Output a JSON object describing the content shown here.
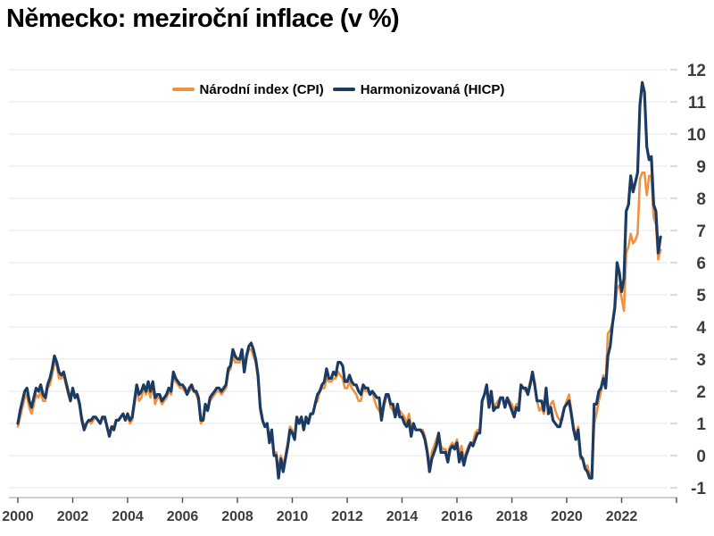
{
  "page": {
    "title": "Německo: meziroční inflace (v %)"
  },
  "legend": {
    "cpi": "Národní index (CPI)",
    "hicp": "Harmonizovaná (HICP)"
  },
  "chart_data": {
    "type": "line",
    "title": "Německo: meziroční inflace (v %)",
    "xlabel": "",
    "ylabel": "",
    "x_start_year": 2000,
    "x_interval": "monthly",
    "x_end": "2023-06",
    "x_axis_end_year": 2024,
    "xticks": [
      2000,
      2002,
      2004,
      2006,
      2008,
      2010,
      2012,
      2014,
      2016,
      2018,
      2020,
      2022
    ],
    "ylim": [
      -1,
      12
    ],
    "ytick_step": 1,
    "grid": "horizontal",
    "legend_position": "top-center",
    "colors": {
      "grid": "#e4e4e4",
      "axis_line": "#bfbfbf",
      "ytick": "#c9c9c9",
      "xtick": "#4d4d4d",
      "labels": "#3d3d3d",
      "title": "#000000"
    },
    "series": [
      {
        "name": "Národní index (CPI)",
        "color": "#f0913e",
        "values": [
          0.9,
          1.2,
          1.5,
          1.8,
          1.9,
          1.5,
          1.3,
          1.6,
          1.9,
          1.8,
          2.0,
          1.7,
          1.7,
          2.1,
          2.2,
          2.5,
          2.9,
          2.8,
          2.4,
          2.4,
          2.5,
          2.2,
          1.9,
          1.7,
          2.0,
          1.8,
          1.9,
          1.5,
          1.2,
          0.9,
          1.0,
          1.1,
          1.0,
          1.1,
          1.2,
          1.1,
          1.0,
          1.2,
          1.1,
          0.9,
          0.7,
          0.9,
          0.9,
          1.1,
          1.1,
          1.2,
          1.3,
          1.1,
          1.2,
          1.0,
          1.1,
          1.6,
          2.1,
          1.7,
          1.8,
          2.1,
          1.9,
          2.1,
          1.8,
          2.2,
          1.6,
          1.8,
          1.8,
          1.6,
          1.7,
          1.8,
          2.0,
          1.9,
          2.5,
          2.3,
          2.2,
          2.1,
          2.1,
          2.0,
          1.9,
          2.0,
          2.1,
          2.0,
          1.9,
          1.7,
          1.0,
          1.1,
          1.5,
          1.4,
          1.7,
          1.8,
          1.9,
          2.0,
          2.0,
          1.9,
          2.0,
          2.1,
          2.6,
          2.7,
          3.1,
          2.9,
          2.9,
          2.9,
          3.2,
          2.6,
          3.0,
          3.3,
          3.3,
          3.1,
          2.9,
          2.4,
          1.4,
          1.1,
          0.9,
          1.0,
          0.5,
          0.7,
          0.0,
          0.1,
          -0.5,
          0.0,
          -0.3,
          0.0,
          0.4,
          0.9,
          0.8,
          0.5,
          1.2,
          1.0,
          1.2,
          0.8,
          1.1,
          1.0,
          1.3,
          1.3,
          1.6,
          1.7,
          2.0,
          2.1,
          2.1,
          2.4,
          2.3,
          2.3,
          2.4,
          2.4,
          2.6,
          2.5,
          2.4,
          2.1,
          2.1,
          2.3,
          2.1,
          2.0,
          1.9,
          1.7,
          1.7,
          2.1,
          2.0,
          2.0,
          1.9,
          2.0,
          1.7,
          1.5,
          1.4,
          1.2,
          1.5,
          1.8,
          1.9,
          1.5,
          1.4,
          1.2,
          1.3,
          1.4,
          1.3,
          1.2,
          1.0,
          1.3,
          0.9,
          1.0,
          0.8,
          0.8,
          0.8,
          0.8,
          0.6,
          0.2,
          -0.3,
          0.1,
          0.3,
          0.5,
          0.7,
          0.3,
          0.2,
          0.2,
          0.0,
          0.3,
          0.4,
          0.3,
          0.5,
          0.0,
          0.3,
          -0.1,
          0.1,
          0.3,
          0.4,
          0.4,
          0.7,
          0.8,
          0.8,
          1.7,
          1.9,
          2.2,
          1.6,
          2.0,
          1.5,
          1.6,
          1.7,
          1.8,
          1.8,
          1.6,
          1.8,
          1.7,
          1.6,
          1.4,
          1.6,
          1.6,
          2.2,
          2.1,
          2.0,
          2.0,
          2.3,
          2.4,
          2.3,
          1.7,
          1.4,
          1.5,
          1.3,
          2.0,
          1.4,
          1.6,
          1.7,
          1.4,
          1.2,
          1.1,
          1.1,
          1.5,
          1.7,
          1.9,
          1.4,
          0.9,
          0.6,
          0.9,
          -0.1,
          -0.1,
          -0.4,
          -0.3,
          -0.6,
          -0.5,
          1.0,
          1.3,
          1.7,
          2.0,
          2.5,
          2.3,
          3.8,
          3.9,
          4.1,
          4.5,
          5.2,
          5.3,
          4.9,
          4.5,
          6.3,
          6.5,
          6.9,
          6.6,
          6.7,
          6.9,
          8.6,
          8.8,
          8.8,
          8.1,
          8.7,
          8.7,
          7.4,
          7.2,
          6.1,
          6.4
        ]
      },
      {
        "name": "Harmonizovaná (HICP)",
        "color": "#1b3b64",
        "values": [
          1.0,
          1.4,
          1.7,
          2.0,
          2.1,
          1.7,
          1.5,
          1.8,
          2.1,
          2.0,
          2.2,
          1.9,
          1.8,
          2.2,
          2.4,
          2.7,
          3.1,
          2.9,
          2.6,
          2.5,
          2.6,
          2.3,
          2.0,
          1.7,
          2.1,
          1.8,
          1.9,
          1.6,
          1.1,
          0.8,
          1.0,
          1.1,
          1.1,
          1.2,
          1.2,
          1.1,
          1.0,
          1.2,
          1.2,
          0.9,
          0.6,
          0.9,
          0.8,
          1.1,
          1.1,
          1.2,
          1.3,
          1.1,
          1.3,
          1.1,
          1.2,
          1.7,
          2.2,
          1.9,
          2.0,
          2.2,
          2.0,
          2.3,
          2.0,
          2.3,
          1.8,
          1.9,
          1.9,
          1.7,
          1.8,
          1.9,
          2.1,
          2.0,
          2.6,
          2.4,
          2.3,
          2.2,
          2.2,
          2.1,
          1.9,
          2.1,
          2.2,
          2.0,
          2.0,
          1.8,
          1.1,
          1.1,
          1.6,
          1.4,
          1.8,
          1.9,
          2.0,
          2.1,
          2.1,
          2.0,
          2.1,
          2.2,
          2.7,
          2.8,
          3.3,
          3.1,
          3.0,
          3.0,
          3.3,
          2.6,
          3.1,
          3.4,
          3.5,
          3.3,
          3.0,
          2.5,
          1.5,
          1.1,
          0.9,
          1.0,
          0.4,
          0.8,
          0.0,
          0.0,
          -0.7,
          -0.1,
          -0.5,
          -0.1,
          0.3,
          0.8,
          0.7,
          0.5,
          1.2,
          1.0,
          1.2,
          0.8,
          1.2,
          1.0,
          1.3,
          1.3,
          1.6,
          1.9,
          2.0,
          2.2,
          2.3,
          2.7,
          2.4,
          2.4,
          2.6,
          2.5,
          2.9,
          2.9,
          2.8,
          2.3,
          2.3,
          2.5,
          2.3,
          2.2,
          2.2,
          2.0,
          1.9,
          2.2,
          2.1,
          2.1,
          1.9,
          2.0,
          1.9,
          1.8,
          1.8,
          1.1,
          1.6,
          1.9,
          1.9,
          1.6,
          1.6,
          1.2,
          1.6,
          1.2,
          1.2,
          1.0,
          0.9,
          1.1,
          0.6,
          1.0,
          0.8,
          0.8,
          0.8,
          0.7,
          0.5,
          0.1,
          -0.5,
          -0.1,
          0.1,
          0.3,
          0.7,
          0.1,
          0.1,
          0.1,
          -0.2,
          0.2,
          0.3,
          0.2,
          0.4,
          -0.2,
          0.1,
          -0.3,
          0.0,
          0.2,
          0.4,
          0.3,
          0.5,
          0.7,
          0.7,
          1.7,
          1.9,
          2.2,
          1.5,
          2.0,
          1.4,
          1.5,
          1.5,
          1.8,
          1.8,
          1.5,
          1.8,
          1.6,
          1.4,
          1.2,
          1.5,
          1.4,
          2.2,
          2.1,
          2.1,
          1.9,
          2.2,
          2.6,
          2.2,
          1.7,
          1.7,
          1.7,
          1.4,
          2.1,
          1.3,
          1.5,
          1.1,
          1.0,
          0.9,
          0.9,
          1.2,
          1.5,
          1.6,
          1.7,
          1.3,
          0.8,
          0.5,
          0.8,
          0.0,
          -0.1,
          -0.4,
          -0.5,
          -0.7,
          -0.7,
          1.6,
          1.6,
          2.0,
          2.1,
          2.4,
          2.1,
          3.1,
          3.4,
          4.1,
          4.6,
          6.0,
          5.7,
          5.1,
          5.5,
          7.6,
          7.8,
          8.7,
          8.2,
          8.5,
          8.8,
          10.9,
          11.6,
          11.3,
          9.6,
          9.2,
          9.3,
          7.8,
          7.6,
          6.3,
          6.8
        ]
      }
    ]
  }
}
